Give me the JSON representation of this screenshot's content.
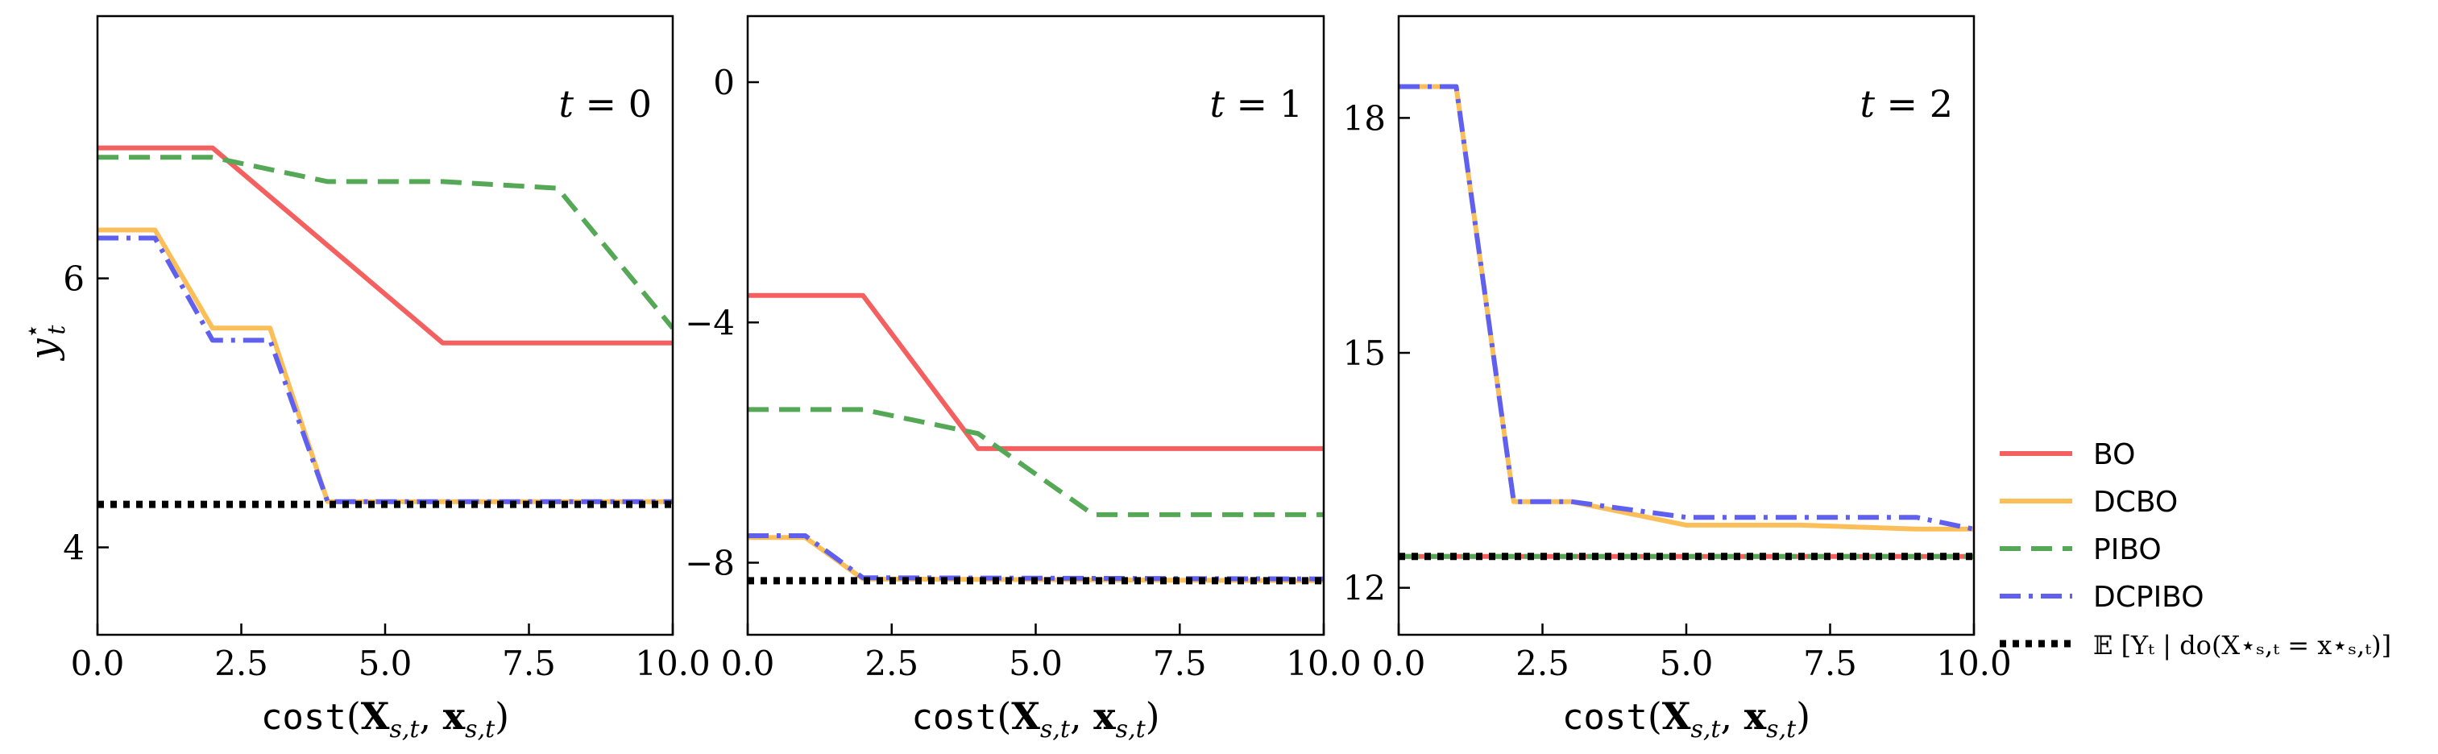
{
  "chart_data": [
    {
      "type": "line",
      "panel_label": "t = 0",
      "xlabel": "cost(X_{s,t}, x_{s,t})",
      "ylabel": "y*_t",
      "xlim": [
        0,
        10
      ],
      "ylim": [
        3.35,
        7.95
      ],
      "xticks": [
        0,
        2.5,
        5,
        7.5,
        10
      ],
      "xtick_labels": [
        "0.0",
        "2.5",
        "5.0",
        "7.5",
        "10.0"
      ],
      "yticks": [
        4,
        6
      ],
      "ytick_labels": [
        "4",
        "6"
      ],
      "series": [
        {
          "name": "BO",
          "x": [
            0,
            2,
            6,
            10
          ],
          "y": [
            6.97,
            6.97,
            5.52,
            5.52
          ]
        },
        {
          "name": "DCBO",
          "x": [
            0,
            1,
            2,
            3,
            4,
            10
          ],
          "y": [
            6.36,
            6.36,
            5.63,
            5.63,
            4.34,
            4.34
          ]
        },
        {
          "name": "PIBO",
          "x": [
            0,
            2,
            4,
            6,
            8,
            10
          ],
          "y": [
            6.9,
            6.9,
            6.72,
            6.72,
            6.67,
            5.63
          ]
        },
        {
          "name": "DCPIBO",
          "x": [
            0,
            1,
            2,
            3,
            4,
            10
          ],
          "y": [
            6.3,
            6.3,
            5.54,
            5.54,
            4.34,
            4.34
          ]
        },
        {
          "name": "E[Y_t | do(X*_{s,t} = x*_{s,t})]",
          "x": [
            0,
            10
          ],
          "y": [
            4.32,
            4.32
          ]
        }
      ]
    },
    {
      "type": "line",
      "panel_label": "t = 1",
      "xlabel": "cost(X_{s,t}, x_{s,t})",
      "ylabel": "",
      "xlim": [
        0,
        10
      ],
      "ylim": [
        -9.2,
        1.1
      ],
      "xticks": [
        0,
        2.5,
        5,
        7.5,
        10
      ],
      "xtick_labels": [
        "0.0",
        "2.5",
        "5.0",
        "7.5",
        "10.0"
      ],
      "yticks": [
        0,
        -4,
        -8
      ],
      "ytick_labels": [
        "0",
        "−4",
        "−8"
      ],
      "series": [
        {
          "name": "BO",
          "x": [
            0,
            2,
            4,
            10
          ],
          "y": [
            -3.55,
            -3.55,
            -6.1,
            -6.1
          ]
        },
        {
          "name": "DCBO",
          "x": [
            0,
            1,
            2,
            10
          ],
          "y": [
            -7.58,
            -7.58,
            -8.27,
            -8.3
          ]
        },
        {
          "name": "PIBO",
          "x": [
            0,
            2,
            4,
            6,
            10
          ],
          "y": [
            -5.45,
            -5.45,
            -5.85,
            -7.2,
            -7.2
          ]
        },
        {
          "name": "DCPIBO",
          "x": [
            0,
            1,
            2,
            10
          ],
          "y": [
            -7.55,
            -7.55,
            -8.25,
            -8.27
          ]
        },
        {
          "name": "E[Y_t | do(X*_{s,t} = x*_{s,t})]",
          "x": [
            0,
            10
          ],
          "y": [
            -8.3,
            -8.3
          ]
        }
      ]
    },
    {
      "type": "line",
      "panel_label": "t = 2",
      "xlabel": "cost(X_{s,t}, x_{s,t})",
      "ylabel": "",
      "xlim": [
        0,
        10
      ],
      "ylim": [
        11.4,
        19.3
      ],
      "xticks": [
        0,
        2.5,
        5,
        7.5,
        10
      ],
      "xtick_labels": [
        "0.0",
        "2.5",
        "5.0",
        "7.5",
        "10.0"
      ],
      "yticks": [
        12,
        15,
        18
      ],
      "ytick_labels": [
        "12",
        "15",
        "18"
      ],
      "series": [
        {
          "name": "BO",
          "x": [
            0,
            10
          ],
          "y": [
            12.4,
            12.4
          ]
        },
        {
          "name": "DCBO",
          "x": [
            0,
            1,
            2,
            3,
            5,
            7,
            9,
            10
          ],
          "y": [
            18.4,
            18.4,
            13.1,
            13.1,
            12.8,
            12.8,
            12.75,
            12.75
          ]
        },
        {
          "name": "PIBO",
          "x": [
            0,
            10
          ],
          "y": [
            12.4,
            12.4
          ]
        },
        {
          "name": "DCPIBO",
          "x": [
            0,
            1,
            2,
            3,
            5,
            7,
            9,
            10
          ],
          "y": [
            18.4,
            18.4,
            13.1,
            13.1,
            12.9,
            12.9,
            12.9,
            12.75
          ]
        },
        {
          "name": "E[Y_t | do(X*_{s,t} = x*_{s,t})]",
          "x": [
            0,
            10
          ],
          "y": [
            12.4,
            12.4
          ]
        }
      ]
    }
  ],
  "legend": {
    "placement": "right",
    "entries": [
      {
        "label": "BO",
        "color": "#f46060",
        "style": "solid"
      },
      {
        "label": "DCBO",
        "color": "#fbbf5a",
        "style": "solid"
      },
      {
        "label": "PIBO",
        "color": "#55a855",
        "style": "dashed"
      },
      {
        "label": "DCPIBO",
        "color": "#5f5ff0",
        "style": "dashdot"
      },
      {
        "label": "𝔼 [Yₜ | do(X⋆ₛ,ₜ = x⋆ₛ,ₜ)]",
        "color": "#000000",
        "style": "dotted"
      }
    ]
  }
}
